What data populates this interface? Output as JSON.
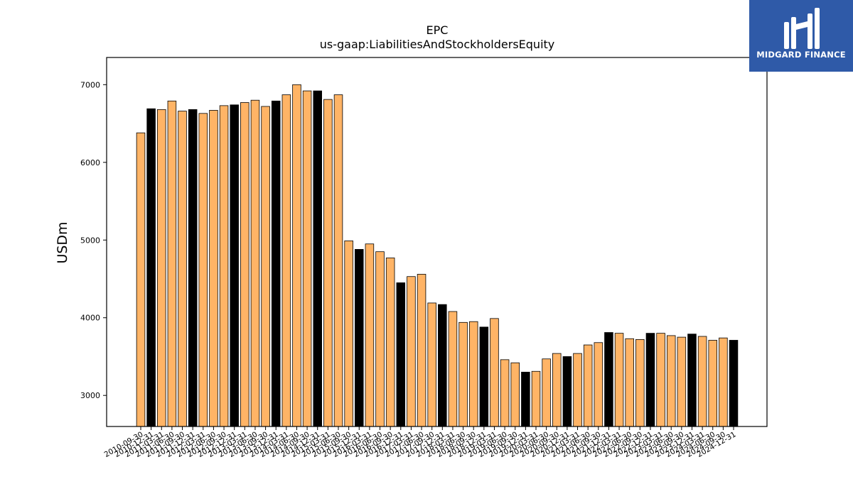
{
  "chart_data": {
    "type": "bar",
    "title": "EPC",
    "subtitle": "us-gaap:LiabilitiesAndStockholdersEquity",
    "xlabel": "",
    "ylabel": "USDm",
    "ylim": [
      2600,
      7350
    ],
    "yticks": [
      3000,
      4000,
      5000,
      6000,
      7000
    ],
    "grid": false,
    "colors": {
      "quarter": "#ffb466",
      "fiscal_year_end": "#000000",
      "edge": "#000000"
    },
    "categories": [
      "2010-09-30",
      "2010-12-31",
      "2011-03-31",
      "2011-06-30",
      "2011-09-30",
      "2011-12-31",
      "2012-03-31",
      "2012-06-30",
      "2012-09-30",
      "2012-12-31",
      "2013-03-31",
      "2013-06-30",
      "2013-09-30",
      "2013-12-31",
      "2014-03-31",
      "2014-06-30",
      "2014-09-30",
      "2014-12-31",
      "2015-03-31",
      "2015-06-30",
      "2015-09-30",
      "2015-12-31",
      "2016-03-31",
      "2016-06-30",
      "2016-09-30",
      "2016-12-31",
      "2017-03-31",
      "2017-06-30",
      "2017-09-30",
      "2017-12-31",
      "2018-03-31",
      "2018-06-30",
      "2018-09-30",
      "2018-12-31",
      "2019-03-31",
      "2019-06-30",
      "2019-09-30",
      "2019-12-31",
      "2020-03-31",
      "2020-06-30",
      "2020-09-30",
      "2020-12-31",
      "2021-03-31",
      "2021-06-30",
      "2021-09-30",
      "2021-12-31",
      "2022-03-31",
      "2022-06-30",
      "2022-09-30",
      "2022-12-31",
      "2023-03-31",
      "2023-06-30",
      "2023-09-30",
      "2023-12-31",
      "2024-03-31",
      "2024-06-30",
      "2024-09-30",
      "2024-12-31"
    ],
    "values": [
      6380,
      6690,
      6680,
      6790,
      6660,
      6680,
      6630,
      6670,
      6730,
      6740,
      6770,
      6800,
      6720,
      6790,
      6870,
      7000,
      6920,
      6920,
      6810,
      6870,
      4990,
      4880,
      4950,
      4850,
      4770,
      4450,
      4530,
      4560,
      4190,
      4170,
      4080,
      3940,
      3950,
      3880,
      3990,
      3460,
      3420,
      3300,
      3310,
      3470,
      3540,
      3500,
      3540,
      3650,
      3680,
      3810,
      3800,
      3730,
      3720,
      3800,
      3800,
      3770,
      3750,
      3790,
      3760,
      3710,
      3740,
      3710
    ],
    "highlight": [
      false,
      true,
      false,
      false,
      false,
      true,
      false,
      false,
      false,
      true,
      false,
      false,
      false,
      true,
      false,
      false,
      false,
      true,
      false,
      false,
      false,
      true,
      false,
      false,
      false,
      true,
      false,
      false,
      false,
      true,
      false,
      false,
      false,
      true,
      false,
      false,
      false,
      true,
      false,
      false,
      false,
      true,
      false,
      false,
      false,
      true,
      false,
      false,
      false,
      true,
      false,
      false,
      false,
      true,
      false,
      false,
      false,
      true
    ]
  },
  "logo": {
    "name": "MIDGARD FINANCE"
  }
}
